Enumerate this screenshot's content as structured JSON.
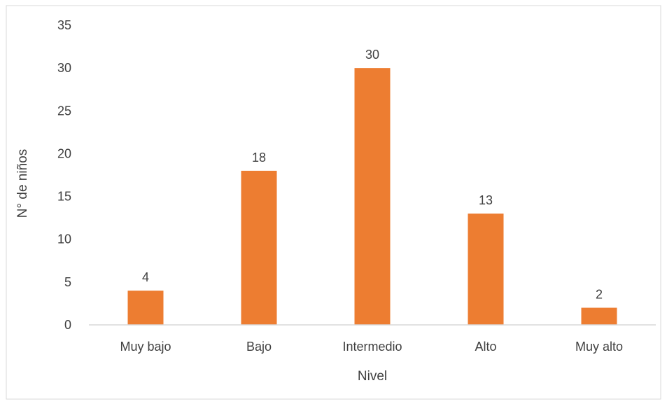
{
  "chart_data": {
    "type": "bar",
    "title": "",
    "xlabel": "Nivel",
    "ylabel": "N° de niños",
    "categories": [
      "Muy bajo",
      "Bajo",
      "Intermedio",
      "Alto",
      "Muy alto"
    ],
    "values": [
      4,
      18,
      30,
      13,
      2
    ],
    "ylim": [
      0,
      35
    ],
    "yticks": [
      0,
      5,
      10,
      15,
      20,
      25,
      30,
      35
    ],
    "grid": false,
    "legend": "none",
    "bar_color": "#ED7D31",
    "data_labels": true
  }
}
